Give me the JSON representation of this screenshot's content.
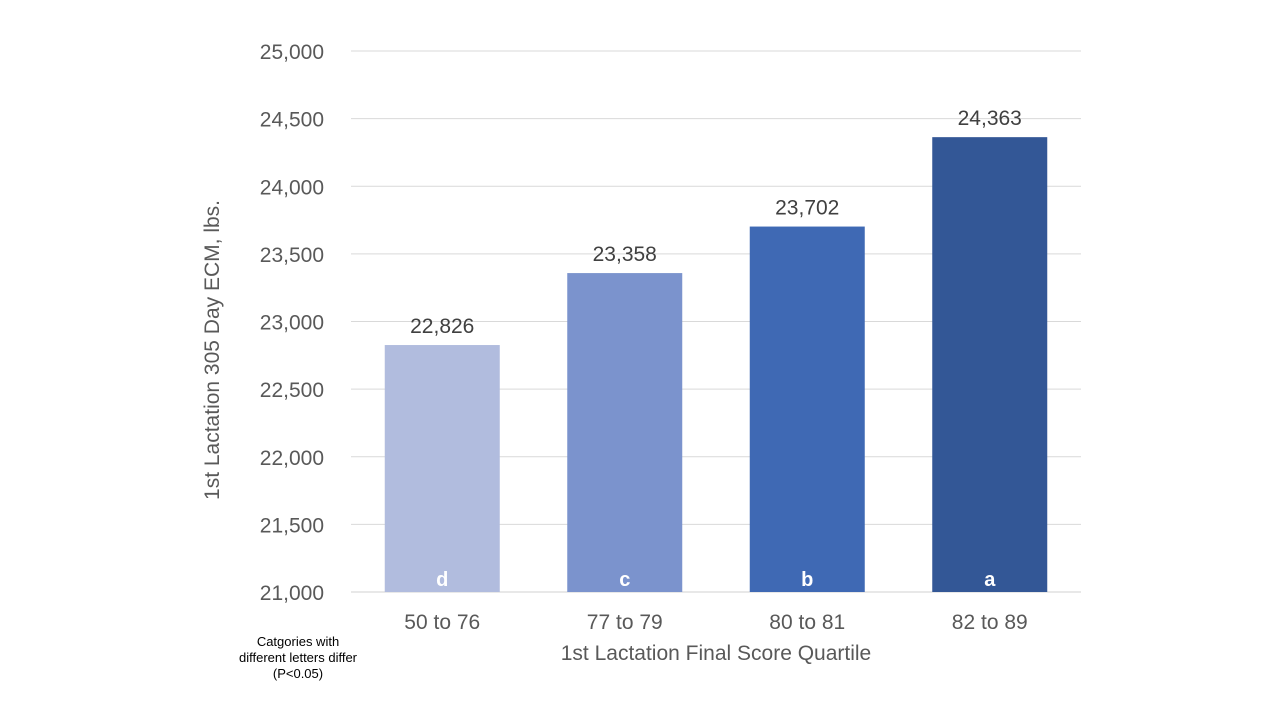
{
  "chart_data": {
    "type": "bar",
    "categories": [
      "50 to 76",
      "77 to 79",
      "80 to 81",
      "82 to 89"
    ],
    "values": [
      22826,
      23358,
      23702,
      24363
    ],
    "data_labels": [
      "22,826",
      "23,358",
      "23,702",
      "24,363"
    ],
    "significance_letters": [
      "d",
      "c",
      "b",
      "a"
    ],
    "bar_colors": [
      "#b1bcde",
      "#7b93cd",
      "#3f69b4",
      "#335796"
    ],
    "xlabel": "1st Lactation Final Score Quartile",
    "ylabel": "1st Lactation 305 Day ECM, lbs.",
    "ylim": [
      21000,
      25000
    ],
    "yticks": [
      21000,
      21500,
      22000,
      22500,
      23000,
      23500,
      24000,
      24500,
      25000
    ],
    "ytick_labels": [
      "21,000",
      "21,500",
      "22,000",
      "22,500",
      "23,000",
      "23,500",
      "24,000",
      "24,500",
      "25,000"
    ],
    "grid": true,
    "legend": "none"
  },
  "footnote": {
    "lines": [
      "Catgories with",
      "different letters differ",
      "(P<0.05)"
    ]
  }
}
